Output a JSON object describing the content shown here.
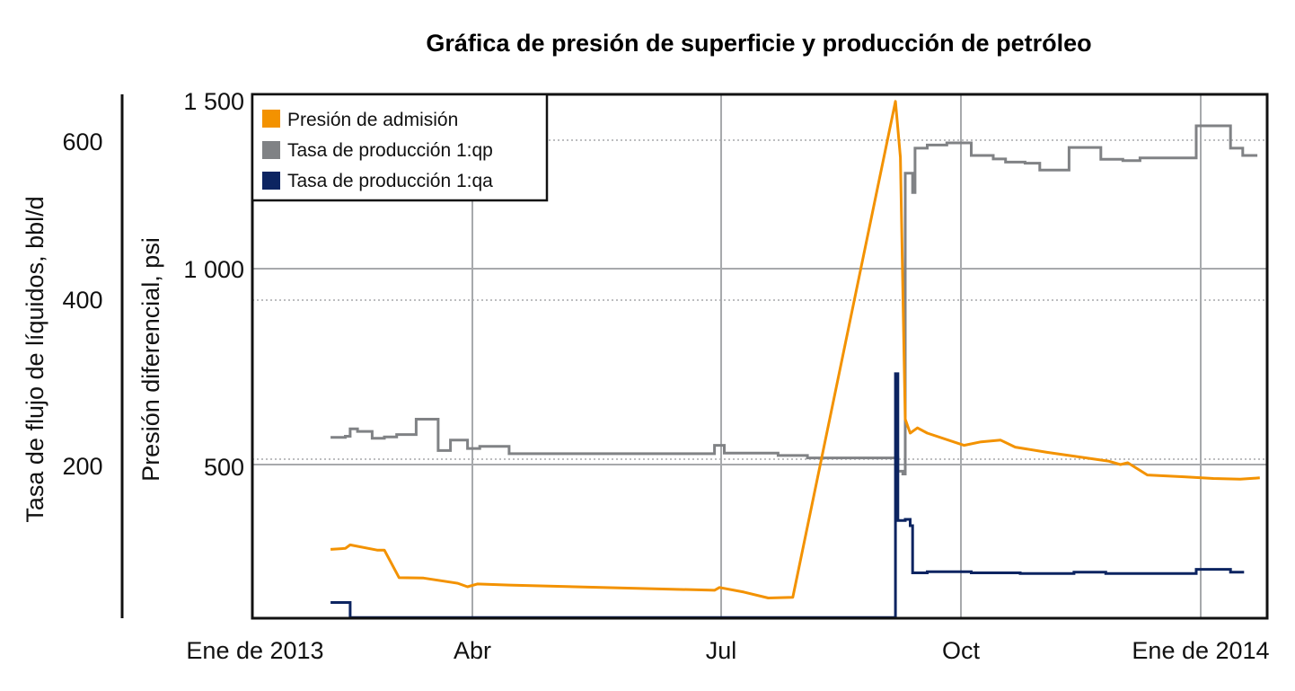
{
  "chart_data": {
    "type": "line",
    "title": "Gráfica de presión de superficie y producción de petróleo",
    "left_ylabel": "Tasa de flujo de líquidos, bbl/d",
    "right_ylabel": "Presión diferencial, psi",
    "left_axis": {
      "ticks": [
        200,
        400,
        600
      ],
      "tick_labels": [
        "200",
        "400",
        "600"
      ]
    },
    "pressure_axis": {
      "range": [
        0,
        1500
      ],
      "ticks": [
        500,
        1000,
        1500
      ],
      "tick_labels": [
        "500",
        "1 000",
        "1 500"
      ]
    },
    "x_axis": {
      "range": [
        "2012-12-11",
        "2014-01-30"
      ],
      "ticks": [
        "2013-01-01",
        "2013-04-01",
        "2013-07-01",
        "2013-10-01",
        "2014-01-01"
      ],
      "tick_labels": [
        "Ene de 2013",
        "Abr",
        "Jul",
        "Oct",
        "Ene de 2014"
      ]
    },
    "grid": true,
    "legend_position": "top-left",
    "colors": {
      "presion": "#f39200",
      "qp": "#808285",
      "qa": "#0c2461",
      "grid": "#a7a9ac"
    },
    "series": [
      {
        "name": "Presión de admisión",
        "color": "#f39200",
        "style": "line",
        "points": [
          [
            "2013-01-12",
            197
          ],
          [
            "2013-01-18",
            200
          ],
          [
            "2013-01-20",
            210
          ],
          [
            "2013-01-31",
            195
          ],
          [
            "2013-02-03",
            195
          ],
          [
            "2013-02-09",
            116
          ],
          [
            "2013-02-19",
            115
          ],
          [
            "2013-03-05",
            100
          ],
          [
            "2013-03-09",
            90
          ],
          [
            "2013-03-13",
            98
          ],
          [
            "2013-03-26",
            95
          ],
          [
            "2013-06-18",
            80
          ],
          [
            "2013-06-20",
            88
          ],
          [
            "2013-06-30",
            75
          ],
          [
            "2013-07-10",
            58
          ],
          [
            "2013-07-20",
            60
          ],
          [
            "2013-08-31",
            1480
          ],
          [
            "2013-09-02",
            1320
          ],
          [
            "2013-09-04",
            570
          ],
          [
            "2013-09-06",
            530
          ],
          [
            "2013-09-09",
            545
          ],
          [
            "2013-09-13",
            530
          ],
          [
            "2013-09-28",
            495
          ],
          [
            "2013-10-05",
            505
          ],
          [
            "2013-10-13",
            510
          ],
          [
            "2013-10-19",
            490
          ],
          [
            "2013-11-01",
            475
          ],
          [
            "2013-11-26",
            450
          ],
          [
            "2013-12-01",
            440
          ],
          [
            "2013-12-04",
            445
          ],
          [
            "2013-12-12",
            410
          ],
          [
            "2013-12-27",
            405
          ],
          [
            "2014-01-08",
            400
          ],
          [
            "2014-01-19",
            398
          ],
          [
            "2014-01-27",
            402
          ]
        ]
      },
      {
        "name": "Tasa de producción 1:qp",
        "color": "#808285",
        "style": "step",
        "points": [
          [
            "2013-01-12",
            518
          ],
          [
            "2013-01-18",
            521
          ],
          [
            "2013-01-20",
            542
          ],
          [
            "2013-01-23",
            535
          ],
          [
            "2013-01-29",
            515
          ],
          [
            "2013-02-03",
            519
          ],
          [
            "2013-02-08",
            526
          ],
          [
            "2013-02-16",
            570
          ],
          [
            "2013-02-25",
            480
          ],
          [
            "2013-03-02",
            510
          ],
          [
            "2013-03-09",
            486
          ],
          [
            "2013-03-14",
            492
          ],
          [
            "2013-03-26",
            471
          ],
          [
            "2013-06-18",
            495
          ],
          [
            "2013-06-22",
            473
          ],
          [
            "2013-07-14",
            466
          ],
          [
            "2013-07-26",
            459
          ],
          [
            "2013-08-31",
            459
          ],
          [
            "2013-09-01",
            421
          ],
          [
            "2013-09-03",
            413
          ],
          [
            "2013-09-04",
            1274
          ],
          [
            "2013-09-07",
            1219
          ],
          [
            "2013-09-08",
            1346
          ],
          [
            "2013-09-13",
            1355
          ],
          [
            "2013-09-21",
            1361
          ],
          [
            "2013-10-01",
            1325
          ],
          [
            "2013-10-10",
            1315
          ],
          [
            "2013-10-15",
            1306
          ],
          [
            "2013-10-23",
            1303
          ],
          [
            "2013-10-29",
            1283
          ],
          [
            "2013-11-10",
            1348
          ],
          [
            "2013-11-23",
            1314
          ],
          [
            "2013-12-02",
            1310
          ],
          [
            "2013-12-09",
            1318
          ],
          [
            "2014-01-01",
            1410
          ],
          [
            "2014-01-15",
            1346
          ],
          [
            "2014-01-20",
            1325
          ],
          [
            "2014-01-26",
            1325
          ]
        ]
      },
      {
        "name": "Tasa de producción 1:qa",
        "color": "#0c2461",
        "style": "step",
        "points": [
          [
            "2013-01-12",
            45
          ],
          [
            "2013-01-20",
            2
          ],
          [
            "2013-08-30",
            2
          ],
          [
            "2013-08-31",
            700
          ],
          [
            "2013-09-01",
            280
          ],
          [
            "2013-09-04",
            283
          ],
          [
            "2013-09-06",
            265
          ],
          [
            "2013-09-07",
            130
          ],
          [
            "2013-09-13",
            133
          ],
          [
            "2013-10-01",
            130
          ],
          [
            "2013-10-21",
            128
          ],
          [
            "2013-11-12",
            132
          ],
          [
            "2013-11-25",
            128
          ],
          [
            "2014-01-01",
            140
          ],
          [
            "2014-01-15",
            132
          ],
          [
            "2014-01-20",
            128
          ]
        ]
      }
    ]
  }
}
